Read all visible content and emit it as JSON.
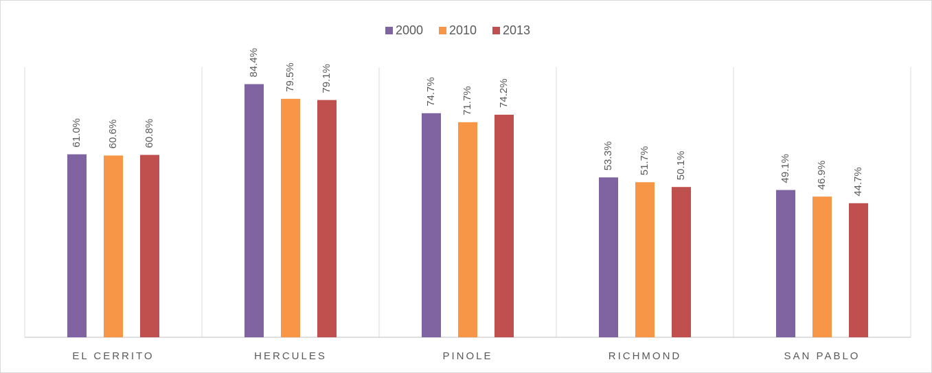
{
  "chart_data": {
    "type": "bar",
    "categories": [
      "EL CERRITO",
      "HERCULES",
      "PINOLE",
      "RICHMOND",
      "SAN PABLO"
    ],
    "series": [
      {
        "name": "2000",
        "color": "#8064a2",
        "values": [
          61.0,
          84.4,
          74.7,
          53.3,
          49.1
        ],
        "value_labels": [
          "61.0%",
          "84.4%",
          "74.7%",
          "53.3%",
          "49.1%"
        ]
      },
      {
        "name": "2010",
        "color": "#f79646",
        "values": [
          60.6,
          79.5,
          71.7,
          51.7,
          46.9
        ],
        "value_labels": [
          "60.6%",
          "79.5%",
          "71.7%",
          "51.7%",
          "46.9%"
        ]
      },
      {
        "name": "2013",
        "color": "#c0504d",
        "values": [
          60.8,
          79.1,
          74.2,
          50.1,
          44.7
        ],
        "value_labels": [
          "60.8%",
          "79.1%",
          "74.2%",
          "50.1%",
          "44.7%"
        ]
      }
    ],
    "ylim": [
      0,
      90
    ],
    "legend": "top"
  }
}
